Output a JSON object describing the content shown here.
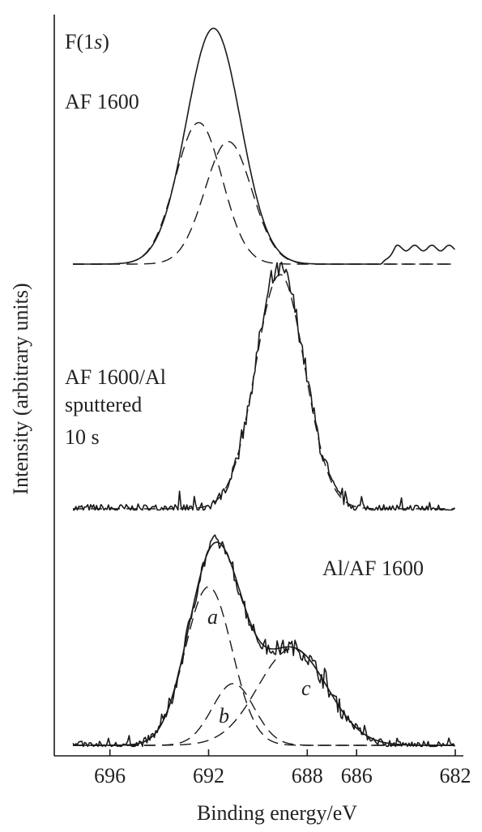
{
  "chart_data": {
    "type": "line",
    "title": "",
    "xlabel": "Binding energy/eV",
    "ylabel": "Intensity (arbitrary units)",
    "x_reversed": true,
    "xlim": [
      697.5,
      682
    ],
    "x_ticks": [
      696,
      692,
      688,
      686,
      682
    ],
    "x_tick_labels": [
      "696",
      "692",
      "688",
      "686",
      "682"
    ],
    "grid": false,
    "legend": "none",
    "panels": [
      {
        "label_lines": [
          "F(1",
          "s",
          ")"
        ],
        "label_main": "AF 1600",
        "series": [
          {
            "style": "solid",
            "kind": "envelope",
            "center": 691.8,
            "sigma": 1.1,
            "height": 1.0,
            "tail": {
              "start": 685.0,
              "end": 682.0,
              "level": 0.08
            }
          },
          {
            "style": "dashed",
            "kind": "component",
            "center": 692.4,
            "sigma": 0.95,
            "height": 0.6
          },
          {
            "style": "dashed",
            "kind": "component",
            "center": 691.2,
            "sigma": 0.95,
            "height": 0.52
          }
        ]
      },
      {
        "label_lines": [
          "AF 1600/Al",
          "sputtered",
          "10 s"
        ],
        "series": [
          {
            "style": "solid",
            "kind": "noisy",
            "center": 689.1,
            "sigma": 1.0,
            "height": 1.0
          },
          {
            "style": "dashed",
            "kind": "fit",
            "center": 689.1,
            "sigma": 1.0,
            "height": 0.98
          }
        ]
      },
      {
        "label_main": "Al/AF 1600",
        "series": [
          {
            "style": "solid",
            "kind": "noisy",
            "components": [
              "a",
              "b",
              "c"
            ]
          },
          {
            "style": "solid",
            "kind": "envelope",
            "components": [
              "a",
              "b",
              "c"
            ]
          },
          {
            "style": "dashed",
            "kind": "component",
            "name": "a",
            "center": 692.0,
            "sigma": 0.95,
            "height": 0.77
          },
          {
            "style": "dashed",
            "kind": "component",
            "name": "b",
            "center": 691.0,
            "sigma": 0.85,
            "height": 0.3
          },
          {
            "style": "dashed",
            "kind": "component",
            "name": "c",
            "center": 688.6,
            "sigma": 1.4,
            "height": 0.47
          }
        ],
        "component_labels": [
          "a",
          "b",
          "c"
        ]
      }
    ]
  }
}
